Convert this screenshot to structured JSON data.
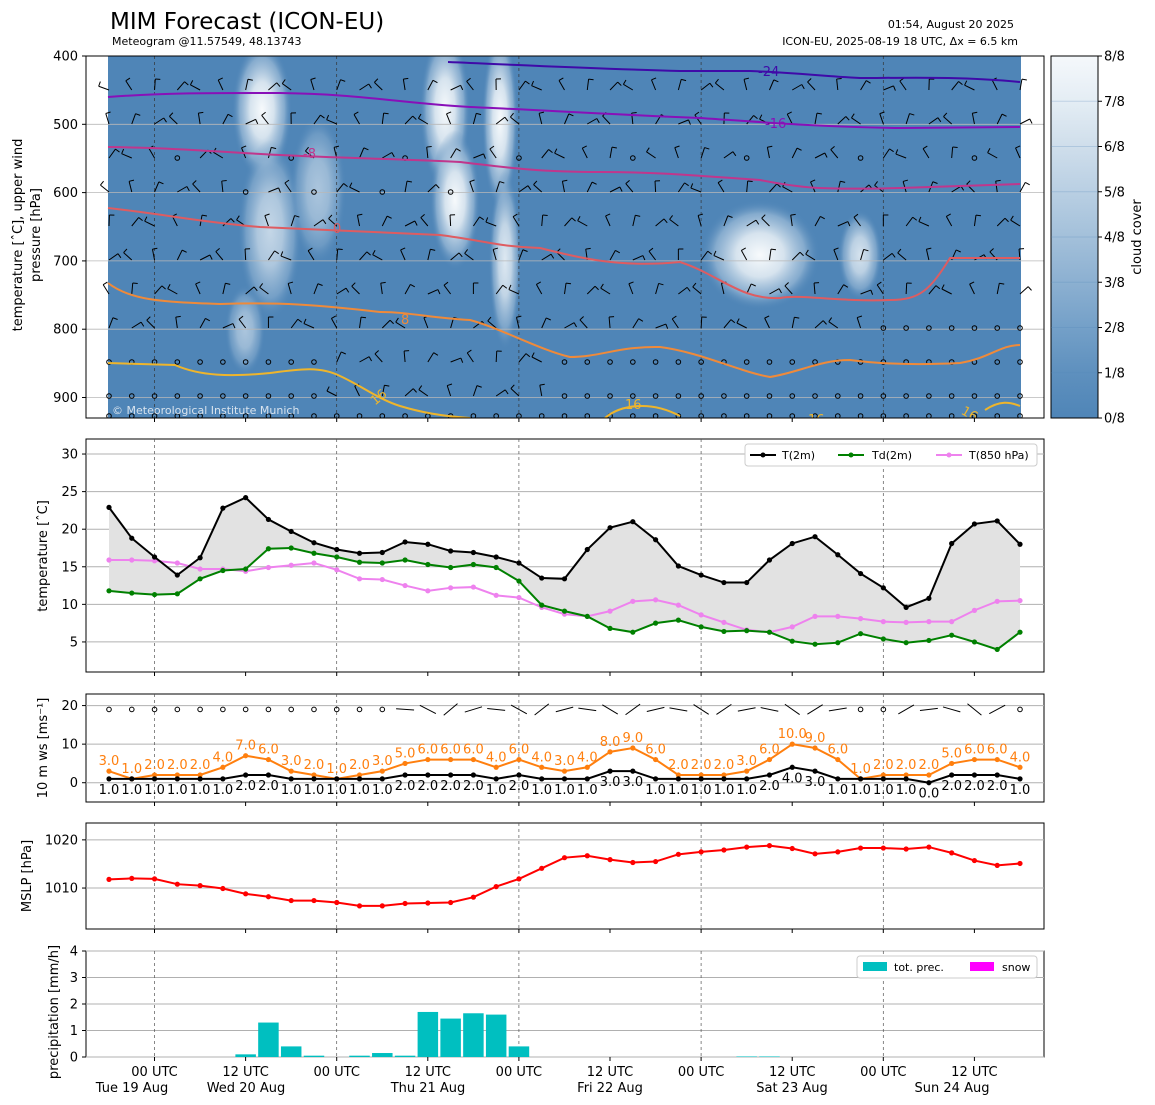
{
  "header": {
    "title": "MIM Forecast (ICON-EU)",
    "subtitle": "Meteogram @11.57549, 48.13743",
    "issued": "01:54, August 20 2025",
    "model_run": "ICON-EU, 2025-08-19 18 UTC, Δx = 6.5 km"
  },
  "colors": {
    "t2m": "#000000",
    "td2m": "#008000",
    "t850": "#ee82ee",
    "wind_max": "#ff7f0e",
    "wind_mean": "#000000",
    "mslp": "#ff0000",
    "precip": "#00bfc0",
    "snow": "#ff00ff",
    "cloud_fill": "#4f85b7"
  },
  "time_axis": {
    "tick_labels": [
      "00 UTC",
      "12 UTC",
      "00 UTC",
      "12 UTC",
      "00 UTC",
      "12 UTC",
      "00 UTC",
      "12 UTC",
      "00 UTC",
      "12 UTC"
    ],
    "day_labels": [
      "Tue 19 Aug",
      "Wed 20 Aug",
      "Thu 21 Aug",
      "Fri 22 Aug",
      "Sat 23 Aug",
      "Sun 24 Aug"
    ]
  },
  "chart_data": [
    {
      "type": "heatmap",
      "name": "upper-air panel",
      "ylabel": "temperature [$^\\circ$C], upper wind\npressure [hPa]",
      "ylabel_lines": [
        "temperature [ˆC], upper wind",
        "pressure [hPa]"
      ],
      "yticks": [
        400,
        500,
        600,
        700,
        800,
        900
      ],
      "ylim": [
        930,
        400
      ],
      "colorbar_label": "cloud cover",
      "colorbar_ticks": [
        "0/8",
        "1/8",
        "2/8",
        "3/8",
        "4/8",
        "5/8",
        "6/8",
        "7/8",
        "8/8"
      ],
      "isotherm_labels": [
        "-24",
        "-16",
        "-8",
        "0",
        "8",
        "16",
        "16",
        "16",
        "16"
      ],
      "copyright": "© Meteorological Institute Munich"
    },
    {
      "type": "line",
      "name": "temperature panel",
      "ylabel": "temperature [ˆC]",
      "yticks": [
        5,
        10,
        15,
        20,
        25,
        30
      ],
      "ylim": [
        1,
        32
      ],
      "series": [
        {
          "name": "T(2m)",
          "values": [
            22.9,
            18.8,
            16.3,
            13.9,
            16.2,
            22.8,
            24.2,
            21.3,
            19.7,
            18.2,
            17.3,
            16.8,
            16.9,
            18.3,
            18.0,
            17.1,
            16.9,
            16.3,
            15.5,
            13.5,
            13.4,
            17.3,
            20.2,
            21.0,
            18.6,
            15.1,
            13.9,
            12.9,
            12.9,
            15.9,
            18.1,
            19.0,
            16.6,
            14.1,
            12.2,
            9.6,
            10.8,
            18.1,
            20.7,
            21.1,
            18.0
          ]
        },
        {
          "name": "Td(2m)",
          "values": [
            11.8,
            11.5,
            11.3,
            11.4,
            13.4,
            14.5,
            14.7,
            17.4,
            17.5,
            16.8,
            16.3,
            15.6,
            15.5,
            15.9,
            15.3,
            14.9,
            15.3,
            14.9,
            13.1,
            9.9,
            9.1,
            8.4,
            6.8,
            6.3,
            7.5,
            7.9,
            7.0,
            6.4,
            6.5,
            6.3,
            5.1,
            4.7,
            4.9,
            6.1,
            5.4,
            4.9,
            5.2,
            5.9,
            5.0,
            4.0,
            6.3
          ]
        },
        {
          "name": "T(850 hPa)",
          "values": [
            15.9,
            15.9,
            15.8,
            15.5,
            14.7,
            14.7,
            14.4,
            14.9,
            15.2,
            15.5,
            14.6,
            13.4,
            13.3,
            12.5,
            11.8,
            12.2,
            12.3,
            11.2,
            10.9,
            9.6,
            8.7,
            8.4,
            9.1,
            10.4,
            10.6,
            9.9,
            8.6,
            7.6,
            6.6,
            6.3,
            7.0,
            8.4,
            8.4,
            8.1,
            7.7,
            7.6,
            7.7,
            7.7,
            9.2,
            10.4,
            10.5
          ]
        }
      ]
    },
    {
      "type": "line",
      "name": "wind panel",
      "ylabel": "10 m ws [ms⁻¹]",
      "yticks": [
        0,
        10,
        20
      ],
      "ylim": [
        -5,
        23
      ],
      "series": [
        {
          "name": "gust",
          "values": [
            3,
            1,
            2,
            2,
            2,
            4,
            7,
            6,
            3,
            2,
            1,
            2,
            3,
            5,
            6,
            6,
            6,
            4,
            6,
            4,
            3,
            4,
            8,
            9,
            6,
            2,
            2,
            2,
            3,
            6,
            10,
            9,
            6,
            1,
            2,
            2,
            2,
            5,
            6,
            6,
            4
          ]
        },
        {
          "name": "mean",
          "values": [
            1,
            1,
            1,
            1,
            1,
            1,
            2,
            2,
            1,
            1,
            1,
            1,
            1,
            2,
            2,
            2,
            2,
            1,
            2,
            1,
            1,
            1,
            3,
            3,
            1,
            1,
            1,
            1,
            1,
            2,
            4,
            3,
            1,
            1,
            1,
            1,
            0,
            2,
            2,
            2,
            1
          ]
        }
      ],
      "gust_labels": [
        "3.0",
        "1.0",
        "2.0",
        "2.0",
        "2.0",
        "4.0",
        "7.0",
        "6.0",
        "3.0",
        "2.0",
        "1.0",
        "2.0",
        "3.0",
        "5.0",
        "6.0",
        "6.0",
        "6.0",
        "4.0",
        "6.0",
        "4.0",
        "3.0",
        "4.0",
        "8.0",
        "9.0",
        "6.0",
        "2.0",
        "2.0",
        "2.0",
        "3.0",
        "6.0",
        "10.0",
        "9.0",
        "6.0",
        "1.0",
        "2.0",
        "2.0",
        "2.0",
        "5.0",
        "6.0",
        "6.0",
        "4.0"
      ],
      "mean_labels": [
        "1.0",
        "1.0",
        "1.0",
        "1.0",
        "1.0",
        "1.0",
        "2.0",
        "2.0",
        "1.0",
        "1.0",
        "1.0",
        "1.0",
        "1.0",
        "2.0",
        "2.0",
        "2.0",
        "2.0",
        "1.0",
        "2.0",
        "1.0",
        "1.0",
        "1.0",
        "3.0",
        "3.0",
        "1.0",
        "1.0",
        "1.0",
        "1.0",
        "1.0",
        "2.0",
        "4.0",
        "3.0",
        "1.0",
        "1.0",
        "1.0",
        "1.0",
        "0.0",
        "2.0",
        "2.0",
        "2.0",
        "1.0"
      ]
    },
    {
      "type": "line",
      "name": "pressure panel",
      "ylabel": "MSLP [hPa]",
      "yticks": [
        1010,
        1020
      ],
      "ylim": [
        1001.5,
        1023.5
      ],
      "series": [
        {
          "name": "MSLP",
          "values": [
            1011.8,
            1012.0,
            1011.9,
            1010.8,
            1010.5,
            1009.9,
            1008.8,
            1008.2,
            1007.4,
            1007.4,
            1007.0,
            1006.3,
            1006.3,
            1006.8,
            1006.9,
            1007.0,
            1008.1,
            1010.3,
            1011.9,
            1014.1,
            1016.3,
            1016.7,
            1015.9,
            1015.3,
            1015.5,
            1017.0,
            1017.5,
            1017.9,
            1018.5,
            1018.8,
            1018.2,
            1017.1,
            1017.5,
            1018.3,
            1018.3,
            1018.1,
            1018.5,
            1017.3,
            1015.7,
            1014.7,
            1015.1
          ]
        }
      ]
    },
    {
      "type": "bar",
      "name": "precipitation panel",
      "ylabel": "precipitation [mm/h]",
      "yticks": [
        0,
        1,
        2,
        3,
        4
      ],
      "ylim": [
        0,
        4
      ],
      "series": [
        {
          "name": "tot. prec.",
          "values": [
            0,
            0,
            0,
            0,
            0,
            0,
            0.1,
            1.3,
            0.4,
            0.05,
            0,
            0.05,
            0.15,
            0.05,
            1.7,
            1.45,
            1.65,
            1.6,
            0.4,
            0,
            0,
            0,
            0,
            0,
            0,
            0,
            0,
            0,
            0.02,
            0.02,
            0,
            0,
            0,
            0,
            0,
            0,
            0,
            0,
            0,
            0,
            0
          ]
        },
        {
          "name": "snow",
          "values": [
            0,
            0,
            0,
            0,
            0,
            0,
            0,
            0,
            0,
            0,
            0,
            0,
            0,
            0,
            0,
            0,
            0,
            0,
            0,
            0,
            0,
            0,
            0,
            0,
            0,
            0,
            0,
            0,
            0,
            0,
            0,
            0,
            0,
            0,
            0,
            0,
            0,
            0,
            0,
            0,
            0
          ]
        }
      ]
    }
  ]
}
